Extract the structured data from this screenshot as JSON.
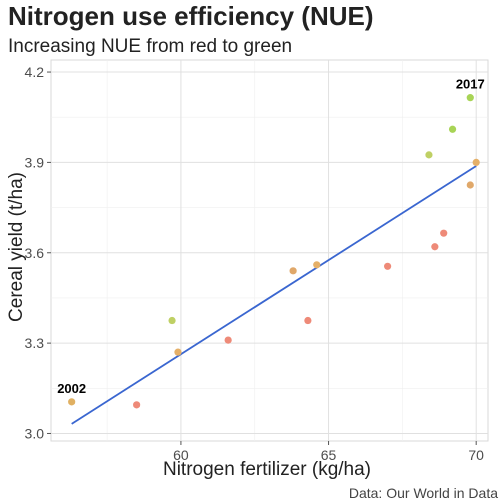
{
  "header": {
    "title": "Nitrogen use efficiency (NUE)",
    "subtitle": "Increasing NUE from red to green"
  },
  "caption": "Data: Our World in Data",
  "chart_data": {
    "type": "scatter",
    "title": "Nitrogen use efficiency (NUE)",
    "subtitle": "Increasing NUE from red to green",
    "xlabel": "Nitrogen fertilizer (kg/ha)",
    "ylabel": "Cereal yield (t/ha)",
    "xlim": [
      55.6,
      70.4
    ],
    "ylim": [
      2.975,
      4.24
    ],
    "x_ticks": [
      60,
      65,
      70
    ],
    "y_ticks": [
      3.0,
      3.3,
      3.6,
      3.9,
      4.2
    ],
    "y_tick_labels": [
      "3.0",
      "3.3",
      "3.6",
      "3.9",
      "4.2"
    ],
    "grid": true,
    "points": [
      {
        "x": 56.3,
        "y": 3.105,
        "color": "#E0B062",
        "label": "2002"
      },
      {
        "x": 58.5,
        "y": 3.095,
        "color": "#EE8A78"
      },
      {
        "x": 59.7,
        "y": 3.375,
        "color": "#BFD064"
      },
      {
        "x": 59.9,
        "y": 3.27,
        "color": "#E5B068"
      },
      {
        "x": 61.6,
        "y": 3.31,
        "color": "#EE8A78"
      },
      {
        "x": 63.8,
        "y": 3.54,
        "color": "#E0A86A"
      },
      {
        "x": 64.3,
        "y": 3.375,
        "color": "#EE8A78"
      },
      {
        "x": 64.6,
        "y": 3.56,
        "color": "#E5B068"
      },
      {
        "x": 67.0,
        "y": 3.555,
        "color": "#EE8A78"
      },
      {
        "x": 68.4,
        "y": 3.925,
        "color": "#BFD064"
      },
      {
        "x": 68.6,
        "y": 3.62,
        "color": "#EE8A78"
      },
      {
        "x": 68.9,
        "y": 3.665,
        "color": "#EE8A78"
      },
      {
        "x": 69.2,
        "y": 4.01,
        "color": "#A8D456"
      },
      {
        "x": 69.8,
        "y": 3.825,
        "color": "#E0A86A"
      },
      {
        "x": 69.8,
        "y": 4.115,
        "color": "#A8D456",
        "label": "2017"
      },
      {
        "x": 70.0,
        "y": 3.9,
        "color": "#E5B068"
      }
    ],
    "trend_line": {
      "color": "#3A66D0",
      "x": [
        56.3,
        70.0
      ],
      "y": [
        3.032,
        3.888
      ]
    }
  }
}
